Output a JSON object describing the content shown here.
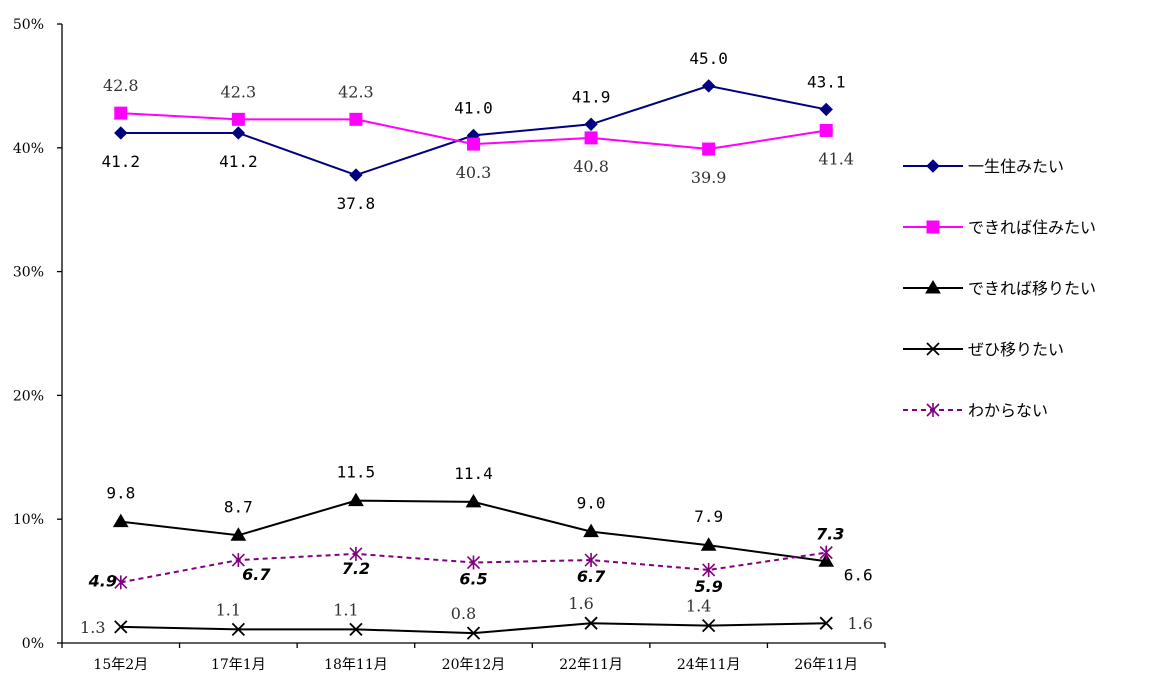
{
  "chart_data": {
    "type": "line",
    "categories": [
      "15年2月",
      "17年1月",
      "18年11月",
      "20年12月",
      "22年11月",
      "24年11月",
      "26年11月"
    ],
    "ylim": [
      0,
      50
    ],
    "yticks": [
      "0%",
      "10%",
      "20%",
      "30%",
      "40%",
      "50%"
    ],
    "ytick_values": [
      0,
      10,
      20,
      30,
      40,
      50
    ],
    "grid": false,
    "legend_position": "right",
    "series": [
      {
        "name": "一生住みたい",
        "values": [
          41.2,
          41.2,
          37.8,
          41.0,
          41.9,
          45.0,
          43.1
        ],
        "labels": [
          "41.2",
          "41.2",
          "37.8",
          "41.0",
          "41.9",
          "45.0",
          "43.1"
        ],
        "color": "#000080",
        "marker": "diamond",
        "dashed": false,
        "label_style": "mono"
      },
      {
        "name": "できれば住みたい",
        "values": [
          42.8,
          42.3,
          42.3,
          40.3,
          40.8,
          39.9,
          41.4
        ],
        "labels": [
          "42.8",
          "42.3",
          "42.3",
          "40.3",
          "40.8",
          "39.9",
          "41.4"
        ],
        "color": "#ff00ff",
        "marker": "square",
        "dashed": false,
        "label_style": "serif"
      },
      {
        "name": "できれば移りたい",
        "values": [
          9.8,
          8.7,
          11.5,
          11.4,
          9.0,
          7.9,
          6.6
        ],
        "labels": [
          "9.8",
          "8.7",
          "11.5",
          "11.4",
          "9.0",
          "7.9",
          "6.6"
        ],
        "color": "#000000",
        "marker": "triangle",
        "dashed": false,
        "label_style": "mono"
      },
      {
        "name": "ぜひ移りたい",
        "values": [
          1.3,
          1.1,
          1.1,
          0.8,
          1.6,
          1.4,
          1.6
        ],
        "labels": [
          "1.3",
          "1.1",
          "1.1",
          "0.8",
          "1.6",
          "1.4",
          "1.6"
        ],
        "color": "#000000",
        "marker": "x",
        "dashed": false,
        "label_style": "serif"
      },
      {
        "name": "わからない",
        "values": [
          4.9,
          6.7,
          7.2,
          6.5,
          6.7,
          5.9,
          7.3
        ],
        "labels": [
          "4.9",
          "6.7",
          "7.2",
          "6.5",
          "6.7",
          "5.9",
          "7.3"
        ],
        "color": "#800080",
        "marker": "asterisk",
        "dashed": true,
        "label_style": "bold"
      }
    ]
  }
}
